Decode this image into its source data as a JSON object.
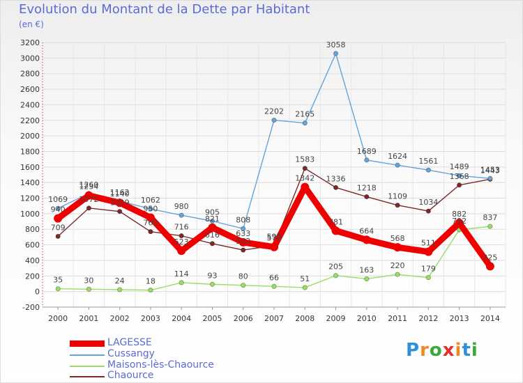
{
  "header": {
    "title": "Evolution du Montant de la Dette par Habitant",
    "subtitle": "(en €)"
  },
  "logo_text": "Proxiti",
  "chart_data": {
    "type": "line",
    "x": [
      "2000",
      "2001",
      "2002",
      "2003",
      "2004",
      "2005",
      "2006",
      "2007",
      "2008",
      "2009",
      "2010",
      "2011",
      "2012",
      "2013",
      "2014"
    ],
    "ylim": [
      -200,
      3200
    ],
    "yticks": [
      -200,
      0,
      200,
      400,
      600,
      800,
      1000,
      1200,
      1400,
      1600,
      1800,
      2000,
      2200,
      2400,
      2600,
      2800,
      3000,
      3200
    ],
    "grid": true,
    "legend_position": "bottom-left",
    "series": [
      {
        "name": "Chaource",
        "color": "#7a2a2a",
        "values": [
          709,
          1072,
          1029,
          769,
          716,
          616,
          533,
          590,
          1583,
          1336,
          1218,
          1109,
          1034,
          1368,
          1443
        ],
        "labels": [
          "709",
          "1072",
          "1029",
          "769",
          "716",
          "616",
          "533",
          "590",
          "1583",
          "1336",
          "1218",
          "1109",
          "1034",
          "1368",
          "1443"
        ]
      },
      {
        "name": "Maisons-lès-Chaource",
        "color": "#99dd66",
        "values": [
          35,
          30,
          24,
          18,
          114,
          93,
          80,
          66,
          51,
          205,
          163,
          220,
          179,
          792,
          837
        ],
        "labels": [
          "35",
          "30",
          "24",
          "18",
          "114",
          "93",
          "80",
          "66",
          "51",
          "205",
          "163",
          "220",
          "179",
          "792",
          "837"
        ]
      },
      {
        "name": "Cussangy",
        "color": "#66a3d9",
        "values": [
          1069,
          1260,
          1162,
          1062,
          980,
          905,
          808,
          2202,
          2165,
          3058,
          1689,
          1624,
          1561,
          1489,
          1453
        ],
        "labels": [
          "1069",
          "1260",
          "1162",
          "1062",
          "980",
          "905",
          "808",
          "2202",
          "2165",
          "3058",
          "1689",
          "1624",
          "1561",
          "1489",
          "1453"
        ]
      },
      {
        "name": "LAGESSE",
        "color": "#ee0000",
        "values": [
          940,
          1234,
          1140,
          950,
          523,
          821,
          633,
          572,
          1342,
          781,
          664,
          568,
          511,
          882,
          325
        ],
        "labels": [
          "940",
          "1234",
          "1140",
          "950",
          "523",
          "821",
          "633",
          "572",
          "1342",
          "781",
          "664",
          "568",
          "511",
          "882",
          "325"
        ]
      }
    ]
  }
}
